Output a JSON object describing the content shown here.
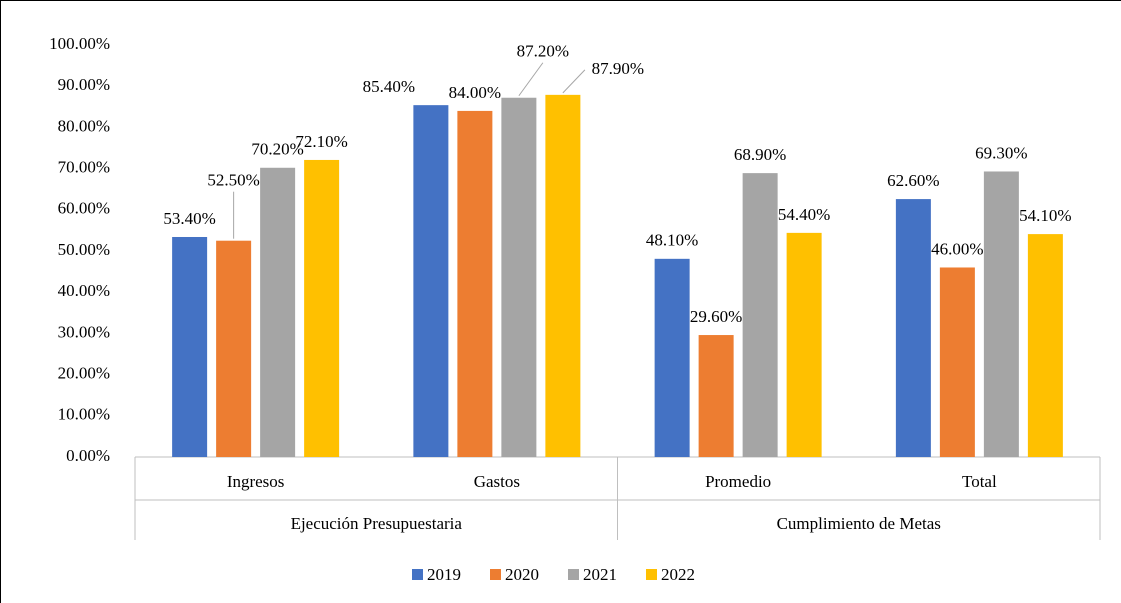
{
  "chart_data": {
    "type": "bar",
    "categories": [
      "Ingresos",
      "Gastos",
      "Promedio",
      "Total"
    ],
    "groups": [
      {
        "label": "Ejecución Presupuestaria",
        "span": 2
      },
      {
        "label": "Cumplimiento de Metas",
        "span": 2
      }
    ],
    "series": [
      {
        "name": "2019",
        "color": "#4472c4",
        "values": [
          53.4,
          85.4,
          48.1,
          62.6
        ],
        "value_labels": [
          "53.40%",
          "85.40%",
          "48.10%",
          "62.60%"
        ]
      },
      {
        "name": "2020",
        "color": "#ed7d31",
        "values": [
          52.5,
          84.0,
          29.6,
          46.0
        ],
        "value_labels": [
          "52.50%",
          "84.00%",
          "29.60%",
          "46.00%"
        ]
      },
      {
        "name": "2021",
        "color": "#a5a5a5",
        "values": [
          70.2,
          87.2,
          68.9,
          69.3
        ],
        "value_labels": [
          "70.20%",
          "87.20%",
          "68.90%",
          "69.30%"
        ]
      },
      {
        "name": "2022",
        "color": "#ffc000",
        "values": [
          72.1,
          87.9,
          54.4,
          54.1
        ],
        "value_labels": [
          "72.10%",
          "87.90%",
          "54.40%",
          "54.10%"
        ]
      }
    ],
    "ylim": [
      0,
      100
    ],
    "yticks": [
      {
        "value": 0,
        "label": "0.00%"
      },
      {
        "value": 10,
        "label": "10.00%"
      },
      {
        "value": 20,
        "label": "20.00%"
      },
      {
        "value": 30,
        "label": "30.00%"
      },
      {
        "value": 40,
        "label": "40.00%"
      },
      {
        "value": 50,
        "label": "50.00%"
      },
      {
        "value": 60,
        "label": "60.00%"
      },
      {
        "value": 70,
        "label": "70.00%"
      },
      {
        "value": 80,
        "label": "80.00%"
      },
      {
        "value": 90,
        "label": "90.00%"
      },
      {
        "value": 100,
        "label": "100.00%"
      }
    ],
    "legend": "bottom"
  }
}
